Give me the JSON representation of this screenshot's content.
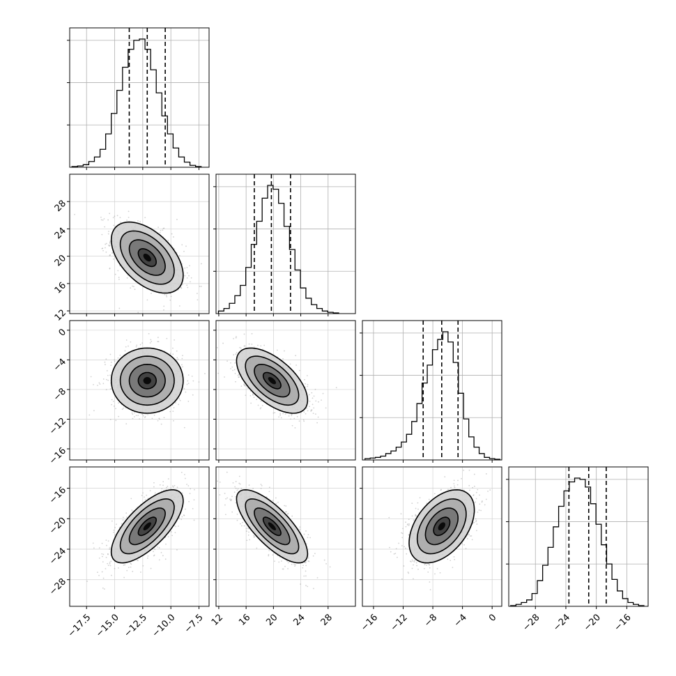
{
  "chart_data": {
    "type": "corner",
    "grid": true,
    "parameters": [
      {
        "range": [
          -19.0,
          -6.6
        ],
        "ticks": [
          -17.5,
          -15.0,
          -12.5,
          -10.0,
          -7.5
        ],
        "tick_labels": [
          "−17.5",
          "−15.0",
          "−12.5",
          "−10.0",
          "−7.5"
        ],
        "quantiles": [
          -13.7,
          -12.1,
          -10.5
        ],
        "hist_x": [
          -18.55,
          -18.05,
          -17.55,
          -17.05,
          -16.55,
          -16.05,
          -15.55,
          -15.05,
          -14.55,
          -14.05,
          -13.55,
          -13.05,
          -12.55,
          -12.05,
          -11.55,
          -11.05,
          -10.55,
          -10.05,
          -9.55,
          -9.05,
          -8.55,
          -8.05,
          -7.55
        ],
        "hist_counts": [
          0.005,
          0.01,
          0.02,
          0.045,
          0.08,
          0.14,
          0.26,
          0.42,
          0.6,
          0.78,
          0.92,
          0.99,
          1.0,
          0.92,
          0.76,
          0.58,
          0.4,
          0.26,
          0.15,
          0.08,
          0.04,
          0.015,
          0.005
        ],
        "center": -12.1,
        "sd": 1.6
      },
      {
        "range": [
          11.6,
          32.0
        ],
        "ticks": [
          12,
          16,
          20,
          24,
          28
        ],
        "tick_labels": [
          "12",
          "16",
          "20",
          "24",
          "28"
        ],
        "quantiles": [
          17.2,
          19.7,
          22.5
        ],
        "hist_x": [
          12.35,
          13.15,
          13.95,
          14.75,
          15.55,
          16.35,
          17.15,
          17.95,
          18.75,
          19.55,
          20.35,
          21.15,
          21.95,
          22.75,
          23.55,
          24.35,
          25.15,
          25.95,
          26.75,
          27.55,
          28.35,
          29.15
        ],
        "hist_counts": [
          0.02,
          0.04,
          0.08,
          0.14,
          0.22,
          0.36,
          0.54,
          0.72,
          0.9,
          1.0,
          0.97,
          0.86,
          0.68,
          0.5,
          0.34,
          0.2,
          0.12,
          0.07,
          0.04,
          0.02,
          0.01,
          0.005
        ],
        "center": 19.8,
        "sd": 2.6
      },
      {
        "range": [
          -17.5,
          1.3
        ],
        "ticks": [
          -16,
          -12,
          -8,
          -4,
          0
        ],
        "tick_labels": [
          "−16",
          "−12",
          "−8",
          "−4",
          "0"
        ],
        "quantiles": [
          -9.3,
          -6.8,
          -4.6
        ],
        "hist_x": [
          -16.8,
          -16.1,
          -15.4,
          -14.7,
          -14.0,
          -13.3,
          -12.6,
          -11.9,
          -11.2,
          -10.5,
          -9.8,
          -9.1,
          -8.4,
          -7.7,
          -7.0,
          -6.3,
          -5.6,
          -4.9,
          -4.2,
          -3.5,
          -2.8,
          -2.1,
          -1.4,
          -0.7,
          0.0,
          0.7
        ],
        "hist_counts": [
          0.01,
          0.015,
          0.02,
          0.03,
          0.05,
          0.07,
          0.1,
          0.14,
          0.2,
          0.3,
          0.44,
          0.6,
          0.74,
          0.86,
          0.94,
          1.0,
          0.92,
          0.76,
          0.52,
          0.32,
          0.18,
          0.1,
          0.05,
          0.02,
          0.01,
          0.005
        ],
        "center": -6.8,
        "sd": 2.2
      },
      {
        "range": [
          -31.5,
          -13.2
        ],
        "ticks": [
          -28,
          -24,
          -20,
          -16
        ],
        "tick_labels": [
          "−28",
          "−24",
          "−20",
          "−16"
        ],
        "quantiles": [
          -23.6,
          -21.0,
          -18.7
        ],
        "hist_x": [
          -30.9,
          -30.2,
          -29.5,
          -28.8,
          -28.1,
          -27.4,
          -26.7,
          -26.0,
          -25.3,
          -24.6,
          -23.9,
          -23.2,
          -22.5,
          -21.8,
          -21.1,
          -20.4,
          -19.7,
          -19.0,
          -18.3,
          -17.6,
          -16.9,
          -16.2,
          -15.5,
          -14.8,
          -14.1
        ],
        "hist_counts": [
          0.005,
          0.015,
          0.03,
          0.05,
          0.1,
          0.2,
          0.32,
          0.46,
          0.62,
          0.78,
          0.9,
          0.97,
          1.0,
          0.99,
          0.93,
          0.8,
          0.64,
          0.48,
          0.33,
          0.21,
          0.12,
          0.06,
          0.03,
          0.015,
          0.005
        ],
        "center": -21.0,
        "sd": 2.4
      }
    ],
    "correlations": {
      "1,0": -0.5,
      "2,0": 0.0,
      "2,1": -0.6,
      "3,0": 0.7,
      "3,1": -0.75,
      "3,2": 0.45
    },
    "contour_levels_sigma": [
      0.5,
      1.0,
      1.5,
      2.0
    ]
  }
}
